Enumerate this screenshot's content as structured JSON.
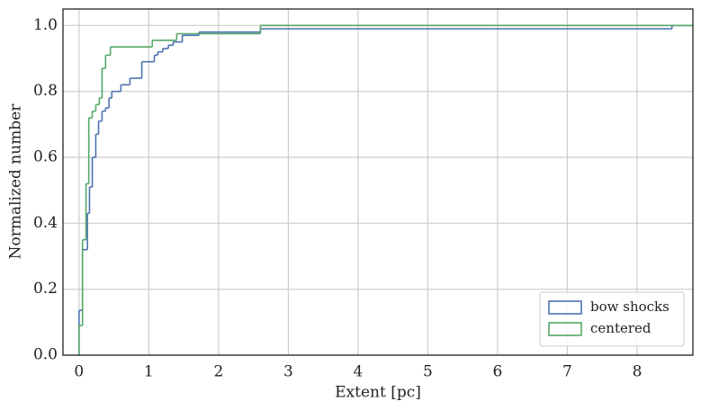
{
  "chart_data": {
    "type": "step",
    "xlabel": "Extent [pc]",
    "ylabel": "Normalized number",
    "xlim": [
      -0.23,
      8.8
    ],
    "ylim": [
      0,
      1.05
    ],
    "xticks": [
      0,
      1,
      2,
      3,
      4,
      5,
      6,
      7,
      8
    ],
    "yticks": [
      {
        "value": 0,
        "label": "0.0"
      },
      0.2,
      0.4,
      0.6,
      0.8,
      {
        "value": 1,
        "label": "1.0"
      }
    ],
    "grid": true,
    "legend": "lower right",
    "series": [
      {
        "name": "bow shocks",
        "color": "#4c72b0",
        "x": [
          0,
          0.05,
          0.12,
          0.15,
          0.19,
          0.24,
          0.28,
          0.33,
          0.38,
          0.43,
          0.47,
          0.6,
          0.73,
          0.9,
          1.08,
          1.13,
          1.2,
          1.28,
          1.35,
          1.48,
          1.72,
          2.55,
          2.6,
          8.5
        ],
        "values": [
          0.136,
          0.32,
          0.43,
          0.51,
          0.6,
          0.67,
          0.71,
          0.74,
          0.75,
          0.78,
          0.8,
          0.82,
          0.84,
          0.89,
          0.91,
          0.92,
          0.93,
          0.94,
          0.95,
          0.97,
          0.98,
          0.98,
          0.99,
          1.0
        ]
      },
      {
        "name": "centered",
        "color": "#55a868",
        "x": [
          0,
          0.05,
          0.1,
          0.14,
          0.19,
          0.24,
          0.29,
          0.33,
          0.38,
          0.45,
          1.05,
          1.4,
          2.6
        ],
        "values": [
          0.09,
          0.35,
          0.52,
          0.72,
          0.74,
          0.76,
          0.78,
          0.87,
          0.91,
          0.935,
          0.955,
          0.975,
          1.0
        ]
      }
    ]
  }
}
